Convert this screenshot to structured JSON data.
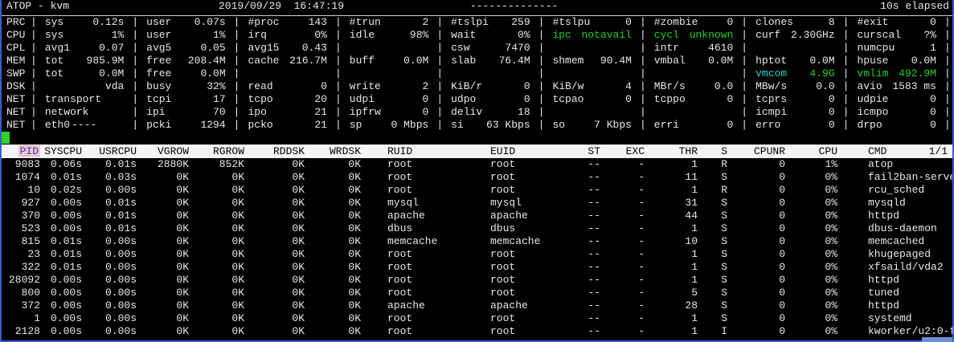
{
  "title_bar": {
    "app": "ATOP - kvm",
    "datetime": "2019/09/29  16:47:19",
    "separator_dashes": "--------------",
    "elapsed": "10s elapsed"
  },
  "panel": {
    "rows": [
      {
        "label": "PRC",
        "fields": [
          {
            "n": "sys",
            "v": "0.12s"
          },
          {
            "n": "user",
            "v": "0.07s"
          },
          {
            "n": "#proc",
            "v": "143"
          },
          {
            "n": "#trun",
            "v": "2"
          },
          {
            "n": "#tslpi",
            "v": "259"
          },
          {
            "n": "#tslpu",
            "v": "0"
          },
          {
            "n": "#zombie",
            "v": "0"
          },
          {
            "n": "clones",
            "v": "8"
          },
          {
            "n": "#exit",
            "v": "0"
          }
        ]
      },
      {
        "label": "CPU",
        "fields": [
          {
            "n": "sys",
            "v": "1%"
          },
          {
            "n": "user",
            "v": "1%"
          },
          {
            "n": "irq",
            "v": "0%"
          },
          {
            "n": "idle",
            "v": "98%"
          },
          {
            "n": "wait",
            "v": "0%"
          },
          {
            "n": "ipc",
            "v": "notavail",
            "c": "green"
          },
          {
            "n": "cycl",
            "v": "unknown",
            "c": "green"
          },
          {
            "n": "curf",
            "v": "2.30GHz"
          },
          {
            "n": "curscal",
            "v": "?%"
          }
        ]
      },
      {
        "label": "CPL",
        "fields": [
          {
            "n": "avg1",
            "v": "0.07"
          },
          {
            "n": "avg5",
            "v": "0.05"
          },
          {
            "n": "avg15",
            "v": "0.43"
          },
          {},
          {
            "n": "csw",
            "v": "7470"
          },
          {},
          {
            "n": "intr",
            "v": "4610"
          },
          {},
          {
            "n": "numcpu",
            "v": "1"
          }
        ]
      },
      {
        "label": "MEM",
        "fields": [
          {
            "n": "tot",
            "v": "985.9M"
          },
          {
            "n": "free",
            "v": "208.4M"
          },
          {
            "n": "cache",
            "v": "216.7M"
          },
          {
            "n": "buff",
            "v": "0.0M"
          },
          {
            "n": "slab",
            "v": "76.4M"
          },
          {
            "n": "shmem",
            "v": "90.4M"
          },
          {
            "n": "vmbal",
            "v": "0.0M"
          },
          {
            "n": "hptot",
            "v": "0.0M"
          },
          {
            "n": "hpuse",
            "v": "0.0M"
          }
        ]
      },
      {
        "label": "SWP",
        "fields": [
          {
            "n": "tot",
            "v": "0.0M"
          },
          {
            "n": "free",
            "v": "0.0M"
          },
          {},
          {},
          {},
          {},
          {},
          {
            "n": "vmcom",
            "v": "4.9G",
            "nc": "cyan",
            "vc": "green"
          },
          {
            "n": "vmlim",
            "v": "492.9M",
            "c": "green"
          }
        ]
      },
      {
        "label": "DSK",
        "fields": [
          {
            "n": "",
            "v": "vda"
          },
          {
            "n": "busy",
            "v": "32%"
          },
          {
            "n": "read",
            "v": "0"
          },
          {
            "n": "write",
            "v": "2"
          },
          {
            "n": "KiB/r",
            "v": "0"
          },
          {
            "n": "KiB/w",
            "v": "4"
          },
          {
            "n": "MBr/s",
            "v": "0.0"
          },
          {
            "n": "MBw/s",
            "v": "0.0"
          },
          {
            "n": "avio",
            "v": "1583 ms"
          }
        ]
      },
      {
        "label": "NET",
        "fields": [
          {
            "n": "transport",
            "v": ""
          },
          {
            "n": "tcpi",
            "v": "17"
          },
          {
            "n": "tcpo",
            "v": "20"
          },
          {
            "n": "udpi",
            "v": "0"
          },
          {
            "n": "udpo",
            "v": "0"
          },
          {
            "n": "tcpao",
            "v": "0"
          },
          {
            "n": "tcppo",
            "v": "0"
          },
          {
            "n": "tcprs",
            "v": "0"
          },
          {
            "n": "udpie",
            "v": "0"
          }
        ]
      },
      {
        "label": "NET",
        "fields": [
          {
            "n": "network",
            "v": ""
          },
          {
            "n": "ipi",
            "v": "70"
          },
          {
            "n": "ipo",
            "v": "21"
          },
          {
            "n": "ipfrw",
            "v": "0"
          },
          {
            "n": "deliv",
            "v": "18"
          },
          {},
          {},
          {
            "n": "icmpi",
            "v": "0"
          },
          {
            "n": "icmpo",
            "v": "0"
          }
        ]
      },
      {
        "label": "NET",
        "fields": [
          {
            "n": "eth0",
            "v": "----"
          },
          {
            "n": "pcki",
            "v": "1294"
          },
          {
            "n": "pcko",
            "v": "21"
          },
          {
            "n": "sp",
            "v": "0 Mbps"
          },
          {
            "n": "si",
            "v": "63 Kbps"
          },
          {
            "n": "so",
            "v": "7 Kbps"
          },
          {
            "n": "erri",
            "v": "0"
          },
          {
            "n": "erro",
            "v": "0"
          },
          {
            "n": "drpo",
            "v": "0"
          }
        ]
      }
    ]
  },
  "process_table": {
    "page": "1/1",
    "sort_column": "PID",
    "columns": [
      "PID",
      "SYSCPU",
      "USRCPU",
      "VGROW",
      "RGROW",
      "RDDSK",
      "WRDSK",
      "RUID",
      "EUID",
      "ST",
      "EXC",
      "THR",
      "S",
      "CPUNR",
      "CPU",
      "CMD"
    ],
    "rows": [
      [
        "9083",
        "0.06s",
        "0.01s",
        "2880K",
        "852K",
        "0K",
        "0K",
        "root",
        "root",
        "--",
        "-",
        "1",
        "R",
        "0",
        "1%",
        "atop"
      ],
      [
        "1074",
        "0.01s",
        "0.03s",
        "0K",
        "0K",
        "0K",
        "0K",
        "root",
        "root",
        "--",
        "-",
        "11",
        "S",
        "0",
        "0%",
        "fail2ban-serve"
      ],
      [
        "10",
        "0.02s",
        "0.00s",
        "0K",
        "0K",
        "0K",
        "0K",
        "root",
        "root",
        "--",
        "-",
        "1",
        "R",
        "0",
        "0%",
        "rcu_sched"
      ],
      [
        "927",
        "0.00s",
        "0.01s",
        "0K",
        "0K",
        "0K",
        "0K",
        "mysql",
        "mysql",
        "--",
        "-",
        "31",
        "S",
        "0",
        "0%",
        "mysqld"
      ],
      [
        "370",
        "0.00s",
        "0.01s",
        "0K",
        "0K",
        "0K",
        "0K",
        "apache",
        "apache",
        "--",
        "-",
        "44",
        "S",
        "0",
        "0%",
        "httpd"
      ],
      [
        "523",
        "0.00s",
        "0.01s",
        "0K",
        "0K",
        "0K",
        "0K",
        "dbus",
        "dbus",
        "--",
        "-",
        "1",
        "S",
        "0",
        "0%",
        "dbus-daemon"
      ],
      [
        "815",
        "0.01s",
        "0.00s",
        "0K",
        "0K",
        "0K",
        "0K",
        "memcache",
        "memcache",
        "--",
        "-",
        "10",
        "S",
        "0",
        "0%",
        "memcached"
      ],
      [
        "23",
        "0.01s",
        "0.00s",
        "0K",
        "0K",
        "0K",
        "0K",
        "root",
        "root",
        "--",
        "-",
        "1",
        "S",
        "0",
        "0%",
        "khugepaged"
      ],
      [
        "322",
        "0.01s",
        "0.00s",
        "0K",
        "0K",
        "0K",
        "0K",
        "root",
        "root",
        "--",
        "-",
        "1",
        "S",
        "0",
        "0%",
        "xfsaild/vda2"
      ],
      [
        "28092",
        "0.00s",
        "0.00s",
        "0K",
        "0K",
        "0K",
        "0K",
        "root",
        "root",
        "--",
        "-",
        "1",
        "S",
        "0",
        "0%",
        "httpd"
      ],
      [
        "800",
        "0.00s",
        "0.00s",
        "0K",
        "0K",
        "0K",
        "0K",
        "root",
        "root",
        "--",
        "-",
        "5",
        "S",
        "0",
        "0%",
        "tuned"
      ],
      [
        "372",
        "0.00s",
        "0.00s",
        "0K",
        "0K",
        "0K",
        "0K",
        "apache",
        "apache",
        "--",
        "-",
        "28",
        "S",
        "0",
        "0%",
        "httpd"
      ],
      [
        "1",
        "0.00s",
        "0.00s",
        "0K",
        "0K",
        "0K",
        "0K",
        "root",
        "root",
        "--",
        "-",
        "1",
        "S",
        "0",
        "0%",
        "systemd"
      ],
      [
        "2128",
        "0.00s",
        "0.00s",
        "0K",
        "0K",
        "0K",
        "0K",
        "root",
        "root",
        "--",
        "-",
        "1",
        "I",
        "0",
        "0%",
        "kworker/u2:0-f"
      ]
    ]
  },
  "colors": {
    "background": "#000000",
    "text": "#e8e8e8",
    "accent_green": "#21d121",
    "accent_cyan": "#27cfcf",
    "table_header_bg": "#f4f4f4",
    "sort_column_text": "#3434c8",
    "frame_blue": "#3c5bd0",
    "cursor_green": "#2ed22e"
  }
}
